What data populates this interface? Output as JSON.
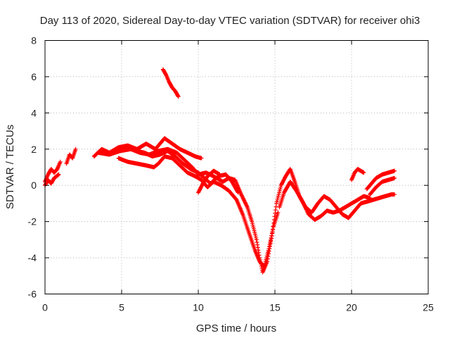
{
  "chart_data": {
    "type": "scatter",
    "title": "Day 113 of 2020, Sidereal Day-to-day VTEC variation (SDTVAR) for receiver ohi3",
    "xlabel": "GPS time / hours",
    "ylabel": "SDTVAR / TECUs",
    "xlim": [
      0,
      25
    ],
    "ylim": [
      -6,
      8
    ],
    "xticks": [
      0,
      5,
      10,
      15,
      20,
      25
    ],
    "yticks": [
      -6,
      -4,
      -2,
      0,
      2,
      4,
      6,
      8
    ],
    "grid": true,
    "marker": "+",
    "series": [
      {
        "name": "SDTVAR",
        "color": "#ff0000",
        "tracks": [
          [
            [
              0.0,
              0.2
            ],
            [
              0.2,
              0.6
            ],
            [
              0.4,
              0.9
            ],
            [
              0.6,
              0.7
            ],
            [
              0.8,
              0.9
            ],
            [
              1.0,
              1.3
            ]
          ],
          [
            [
              0.0,
              0.0
            ],
            [
              0.2,
              0.3
            ],
            [
              0.4,
              0.1
            ],
            [
              0.6,
              0.4
            ],
            [
              0.9,
              0.6
            ]
          ],
          [
            [
              1.4,
              1.2
            ],
            [
              1.6,
              1.7
            ],
            [
              1.8,
              1.5
            ],
            [
              2.0,
              2.0
            ]
          ],
          [
            [
              3.2,
              1.6
            ],
            [
              3.7,
              2.0
            ],
            [
              4.2,
              1.8
            ],
            [
              4.8,
              2.1
            ],
            [
              5.4,
              2.2
            ],
            [
              6.0,
              2.0
            ],
            [
              6.6,
              2.3
            ],
            [
              7.2,
              2.0
            ],
            [
              7.8,
              2.6
            ],
            [
              8.3,
              2.3
            ],
            [
              8.8,
              2.0
            ],
            [
              9.3,
              1.8
            ],
            [
              9.8,
              1.6
            ],
            [
              10.2,
              1.5
            ]
          ],
          [
            [
              3.5,
              1.8
            ],
            [
              4.2,
              1.7
            ],
            [
              4.9,
              1.9
            ],
            [
              5.6,
              2.0
            ],
            [
              6.2,
              1.8
            ],
            [
              6.8,
              1.7
            ],
            [
              7.4,
              1.9
            ],
            [
              8.0,
              2.0
            ],
            [
              8.6,
              1.8
            ],
            [
              9.1,
              1.4
            ],
            [
              9.6,
              1.0
            ],
            [
              10.0,
              0.6
            ],
            [
              10.5,
              0.7
            ],
            [
              11.0,
              0.5
            ],
            [
              11.6,
              0.2
            ],
            [
              12.0,
              0.4
            ],
            [
              12.4,
              0.3
            ],
            [
              12.8,
              -0.5
            ],
            [
              13.2,
              -1.2
            ],
            [
              13.5,
              -2.0
            ],
            [
              13.8,
              -3.0
            ],
            [
              14.0,
              -4.0
            ],
            [
              14.2,
              -4.8
            ],
            [
              14.5,
              -4.2
            ],
            [
              14.8,
              -2.8
            ],
            [
              15.1,
              -1.0
            ],
            [
              15.4,
              0.0
            ],
            [
              15.7,
              0.5
            ],
            [
              16.0,
              0.9
            ],
            [
              16.3,
              0.2
            ],
            [
              16.6,
              -0.6
            ],
            [
              17.0,
              -1.2
            ],
            [
              17.4,
              -1.5
            ],
            [
              17.8,
              -1.0
            ],
            [
              18.2,
              -0.6
            ],
            [
              18.6,
              -0.8
            ],
            [
              19.0,
              -1.2
            ],
            [
              19.4,
              -1.6
            ],
            [
              19.8,
              -1.8
            ],
            [
              20.2,
              -1.4
            ],
            [
              20.6,
              -1.0
            ],
            [
              21.0,
              -0.9
            ],
            [
              21.4,
              -0.8
            ],
            [
              21.8,
              -0.7
            ],
            [
              22.2,
              -0.6
            ],
            [
              22.6,
              -0.5
            ],
            [
              22.8,
              -0.5
            ]
          ],
          [
            [
              4.8,
              1.5
            ],
            [
              5.4,
              1.3
            ],
            [
              6.0,
              1.2
            ],
            [
              6.6,
              1.1
            ],
            [
              7.1,
              1.0
            ],
            [
              7.4,
              1.2
            ],
            [
              7.8,
              1.6
            ],
            [
              8.3,
              1.5
            ],
            [
              8.8,
              1.1
            ],
            [
              9.3,
              0.7
            ],
            [
              9.8,
              0.5
            ],
            [
              10.2,
              0.3
            ],
            [
              10.6,
              -0.1
            ],
            [
              11.0,
              0.2
            ],
            [
              11.5,
              0.0
            ],
            [
              12.0,
              -0.3
            ],
            [
              12.5,
              -0.8
            ],
            [
              12.9,
              -1.6
            ],
            [
              13.3,
              -2.6
            ],
            [
              13.7,
              -3.6
            ],
            [
              14.0,
              -4.2
            ],
            [
              14.3,
              -4.5
            ],
            [
              14.6,
              -3.5
            ],
            [
              14.9,
              -2.3
            ],
            [
              15.2,
              -1.5
            ]
          ],
          [
            [
              6.0,
              1.9
            ],
            [
              6.5,
              1.8
            ],
            [
              7.0,
              1.6
            ],
            [
              7.5,
              1.7
            ],
            [
              8.0,
              1.9
            ],
            [
              8.5,
              1.6
            ],
            [
              9.0,
              1.2
            ],
            [
              9.5,
              0.9
            ],
            [
              10.0,
              0.7
            ],
            [
              10.4,
              0.4
            ],
            [
              10.8,
              0.1
            ],
            [
              11.3,
              0.5
            ],
            [
              11.8,
              0.6
            ],
            [
              12.2,
              0.2
            ],
            [
              12.6,
              -0.4
            ]
          ],
          [
            [
              7.7,
              6.4
            ],
            [
              7.9,
              6.1
            ],
            [
              8.1,
              5.7
            ],
            [
              8.3,
              5.4
            ],
            [
              8.5,
              5.2
            ],
            [
              8.7,
              4.9
            ]
          ],
          [
            [
              10.0,
              -0.4
            ],
            [
              10.3,
              0.1
            ],
            [
              10.6,
              0.5
            ],
            [
              11.0,
              0.8
            ],
            [
              11.4,
              0.6
            ]
          ],
          [
            [
              15.3,
              -1.2
            ],
            [
              15.6,
              -0.4
            ],
            [
              16.0,
              0.2
            ],
            [
              16.4,
              -0.3
            ],
            [
              16.8,
              -0.9
            ],
            [
              17.2,
              -1.6
            ],
            [
              17.6,
              -1.9
            ],
            [
              18.0,
              -1.7
            ],
            [
              18.4,
              -1.4
            ],
            [
              18.8,
              -1.5
            ],
            [
              19.2,
              -1.4
            ],
            [
              19.6,
              -1.2
            ],
            [
              20.0,
              -1.0
            ],
            [
              20.4,
              -0.8
            ],
            [
              20.8,
              -0.6
            ],
            [
              21.2,
              -0.7
            ]
          ],
          [
            [
              20.0,
              0.3
            ],
            [
              20.2,
              0.7
            ],
            [
              20.4,
              0.9
            ],
            [
              20.6,
              0.8
            ],
            [
              20.8,
              0.7
            ]
          ],
          [
            [
              21.0,
              -0.2
            ],
            [
              21.3,
              0.1
            ],
            [
              21.6,
              0.4
            ],
            [
              22.0,
              0.6
            ],
            [
              22.4,
              0.7
            ],
            [
              22.8,
              0.8
            ]
          ],
          [
            [
              21.2,
              -0.5
            ],
            [
              21.6,
              -0.1
            ],
            [
              22.0,
              0.2
            ],
            [
              22.4,
              0.3
            ],
            [
              22.8,
              0.4
            ]
          ]
        ]
      }
    ]
  }
}
